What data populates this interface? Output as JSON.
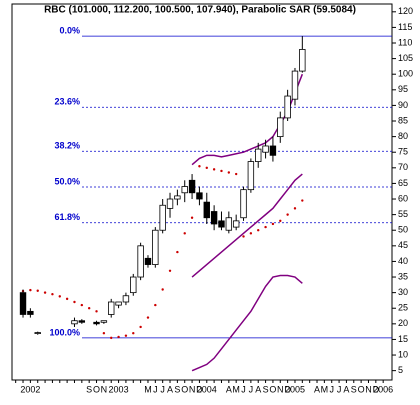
{
  "chart_data": {
    "type": "candlestick",
    "title": "RBC (101.000, 112.200, 100.500, 107.940), Parabolic SAR (59.5084)",
    "categories": [
      null,
      null,
      "2002",
      null,
      null,
      null,
      null,
      null,
      null,
      null,
      "S",
      "O",
      "N",
      null,
      "2003",
      null,
      null,
      null,
      "M",
      "J",
      "J",
      "A",
      "S",
      "O",
      "N",
      "D",
      "2004",
      null,
      null,
      "A",
      "M",
      "J",
      "J",
      "A",
      "S",
      "O",
      "N",
      "D",
      "2005",
      null,
      null,
      "A",
      "M",
      "J",
      "J",
      "A",
      "S",
      "O",
      "N",
      "D",
      "2006"
    ],
    "open": [
      null,
      30,
      24,
      17,
      null,
      null,
      null,
      null,
      20,
      21,
      null,
      20.5,
      20.5,
      23,
      26,
      27,
      30,
      35,
      41,
      39,
      50,
      57,
      60,
      62,
      66,
      62,
      59,
      56,
      53,
      50,
      51,
      54,
      63,
      72,
      75,
      77,
      80,
      86,
      92,
      101,
      null,
      null,
      null,
      null,
      null,
      null,
      null,
      null,
      null,
      null,
      null
    ],
    "high": [
      null,
      31,
      25,
      17.5,
      null,
      null,
      null,
      null,
      22,
      21.5,
      null,
      21,
      21,
      28,
      27,
      30,
      36,
      46,
      42,
      51,
      60,
      62,
      63,
      66,
      68,
      64,
      62,
      58,
      56,
      56,
      55,
      64,
      73,
      78,
      79,
      80,
      88,
      95,
      102,
      112.2,
      null,
      null,
      null,
      null,
      null,
      null,
      null,
      null,
      null,
      null,
      null
    ],
    "low": [
      null,
      22,
      22,
      16.5,
      null,
      null,
      null,
      null,
      19,
      20,
      null,
      19.5,
      20,
      22,
      25,
      26,
      29,
      34,
      38,
      38,
      49,
      54,
      58,
      59,
      60,
      58,
      52,
      50,
      50,
      49,
      50,
      53,
      62,
      70,
      73,
      72,
      78,
      85,
      90,
      100.5,
      null,
      null,
      null,
      null,
      null,
      null,
      null,
      null,
      null,
      null,
      null
    ],
    "close": [
      null,
      23,
      23,
      17.2,
      null,
      null,
      null,
      null,
      21,
      20.5,
      null,
      20,
      21,
      27,
      27,
      29,
      35,
      45,
      39,
      50,
      58,
      60,
      61,
      64,
      62,
      60,
      54,
      52,
      51,
      54,
      53,
      63,
      72,
      76,
      77,
      74,
      86,
      93,
      101,
      107.94,
      null,
      null,
      null,
      null,
      null,
      null,
      null,
      null,
      null,
      null,
      null
    ],
    "up_color": "#ffffff",
    "down_color": "#000000",
    "sar": {
      "color": "#cc0000",
      "values": [
        null,
        30.5,
        30.8,
        30.6,
        30,
        29.5,
        28.8,
        28,
        27,
        26,
        25,
        24,
        17,
        15.5,
        15.8,
        16.2,
        17,
        19,
        22,
        26,
        31,
        37,
        43,
        49,
        54,
        70.5,
        70,
        69.5,
        69,
        68.5,
        68,
        48,
        49,
        50,
        51,
        52,
        53,
        55,
        57,
        59.5084,
        null,
        null,
        null,
        null,
        null,
        null,
        null,
        null,
        null,
        null,
        null
      ]
    },
    "lines": [
      {
        "color": "#800080",
        "values": [
          null,
          null,
          null,
          null,
          null,
          null,
          null,
          null,
          null,
          null,
          null,
          null,
          null,
          null,
          null,
          null,
          null,
          null,
          null,
          null,
          null,
          null,
          null,
          null,
          71,
          73,
          74,
          74,
          73.5,
          74,
          74.5,
          75,
          76,
          77,
          78,
          80,
          84,
          88,
          94,
          100,
          null,
          null,
          null,
          null,
          null,
          null,
          null,
          null,
          null,
          null,
          null
        ]
      },
      {
        "color": "#800080",
        "values": [
          null,
          null,
          null,
          null,
          null,
          null,
          null,
          null,
          null,
          null,
          null,
          null,
          null,
          null,
          null,
          null,
          null,
          null,
          null,
          null,
          null,
          null,
          null,
          null,
          35,
          37,
          39,
          41,
          43,
          45,
          47,
          49,
          51,
          53,
          55,
          57,
          60,
          63,
          66,
          68,
          null,
          null,
          null,
          null,
          null,
          null,
          null,
          null,
          null,
          null,
          null
        ]
      },
      {
        "color": "#800080",
        "values": [
          null,
          null,
          null,
          null,
          null,
          null,
          null,
          null,
          null,
          null,
          null,
          null,
          null,
          null,
          null,
          null,
          null,
          null,
          null,
          null,
          null,
          null,
          null,
          null,
          5,
          6,
          7,
          9,
          12,
          15,
          18,
          21,
          24,
          28,
          32,
          35,
          35.5,
          35.5,
          35,
          33,
          null,
          null,
          null,
          null,
          null,
          null,
          null,
          null,
          null,
          null,
          null
        ]
      }
    ],
    "fib_color": "#0000cc",
    "fib_levels": [
      {
        "label": "0.0%",
        "value": 112.2
      },
      {
        "label": "23.6%",
        "value": 89.4
      },
      {
        "label": "38.2%",
        "value": 75.3
      },
      {
        "label": "50.0%",
        "value": 63.85
      },
      {
        "label": "61.8%",
        "value": 52.4
      },
      {
        "label": "100.0%",
        "value": 15.5
      }
    ],
    "ylim": [
      2,
      122.5
    ],
    "yticks": [
      5,
      10,
      15,
      20,
      25,
      30,
      35,
      40,
      45,
      50,
      55,
      60,
      65,
      70,
      75,
      80,
      85,
      90,
      95,
      100,
      105,
      110,
      115,
      120
    ]
  }
}
